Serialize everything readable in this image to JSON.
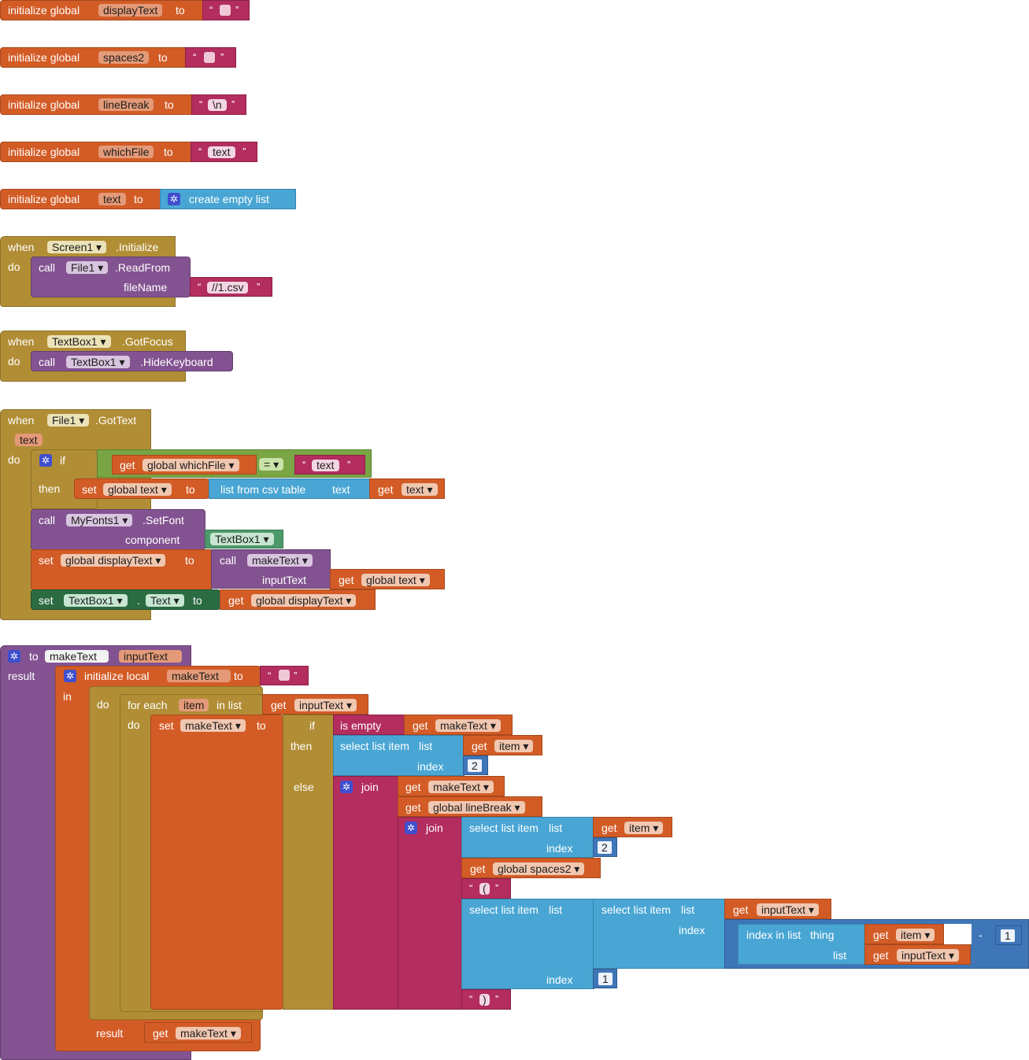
{
  "kw": {
    "initialize_global": "initialize global",
    "to": "to",
    "when": "when",
    "do": "do",
    "call": "call",
    "if": "if",
    "then": "then",
    "else": "else",
    "set": "set",
    "get": "get",
    "in": "in",
    "result": "result",
    "for_each": "for each",
    "in_list": "in list",
    "component": "component",
    "inputText": "inputText",
    "fileName": "fileName",
    "join": "join",
    "list": "list",
    "index": "index",
    "thing": "thing",
    "quote_open": "“",
    "quote_close": "”",
    "dot": ".",
    "drop_arrow": "▾"
  },
  "globals": [
    {
      "name": "displayText",
      "value": ""
    },
    {
      "name": "spaces2",
      "value": ""
    },
    {
      "name": "lineBreak",
      "value": "\\n"
    },
    {
      "name": "whichFile",
      "value": "text"
    },
    {
      "name": "text",
      "value": "create empty list"
    }
  ],
  "screen_init": {
    "component": "Screen1",
    "event": ".Initialize",
    "target": "File1",
    "method": ".ReadFrom",
    "param": "fileName",
    "path": "//1.csv"
  },
  "textbox_focus": {
    "component": "TextBox1",
    "event": ".GotFocus",
    "target": "TextBox1",
    "method": ".HideKeyboard"
  },
  "file_gottext": {
    "component": "File1",
    "event": ".GotText",
    "param": "text",
    "cond_var": "global whichFile",
    "op": "=",
    "cond_value": "text",
    "set_var": "global text",
    "csv_label": "list from csv table",
    "csv_param": "text",
    "csv_get": "text",
    "font_target": "MyFonts1",
    "font_method": ".SetFont",
    "font_param": "component",
    "font_component": "TextBox1",
    "display_var": "global display​Text",
    "make_call": "makeText",
    "make_get": "global text",
    "tb_target": "TextBox1",
    "tb_prop": "Text",
    "tb_get": "global displayText"
  },
  "proc": {
    "name": "makeText",
    "param": "inputText",
    "local_label": "initialize local",
    "local_name": "makeText",
    "loop_var": "item",
    "loop_list": "inputText",
    "set_name": "makeText",
    "is_empty": "is empty",
    "is_empty_get": "makeText",
    "select_list_item": "select list item",
    "get_item": "item",
    "num_2": "2",
    "join_get1": "makeText",
    "join_get2": "global lineBreak",
    "spaces_get": "global spaces2",
    "paren_open": "(",
    "paren_close": ")",
    "sel_list_get": "inputText",
    "index_in_list": "index in list",
    "minus": "-",
    "num_1": "1",
    "result_get": "makeText"
  }
}
